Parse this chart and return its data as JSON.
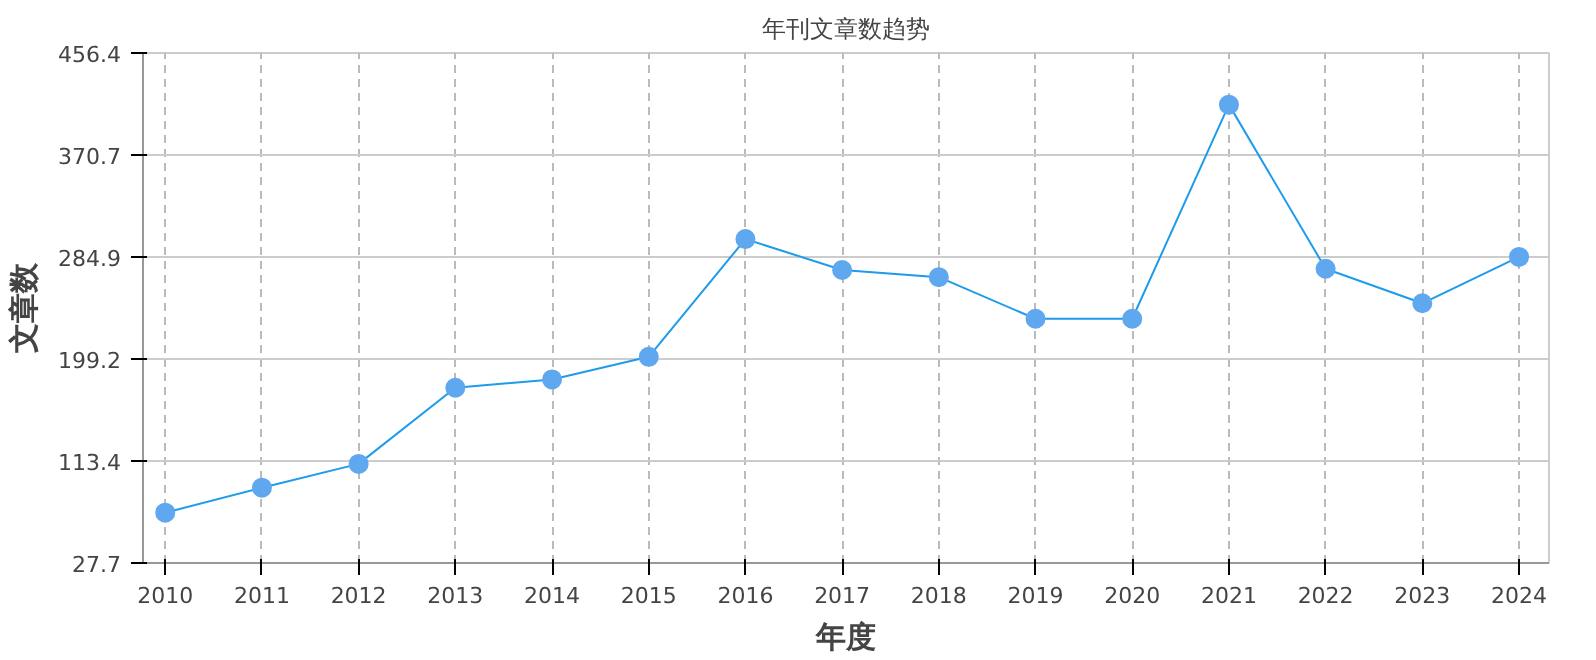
{
  "chart_data": {
    "type": "line",
    "title": "年刊文章数趋势",
    "xlabel": "年度",
    "ylabel": "文章数",
    "categories": [
      "2010",
      "2011",
      "2012",
      "2013",
      "2014",
      "2015",
      "2016",
      "2017",
      "2018",
      "2019",
      "2020",
      "2021",
      "2022",
      "2023",
      "2024"
    ],
    "series": [
      {
        "color": "#1e9bea",
        "values": [
          70,
          91,
          111,
          175,
          182,
          201,
          300,
          274,
          268,
          233,
          233,
          413,
          275,
          246,
          285
        ]
      }
    ],
    "ylim": [
      27.7,
      456.4
    ],
    "yticks": [
      27.7,
      113.4,
      199.2,
      284.9,
      370.7,
      456.4
    ],
    "grid": true,
    "marker": "circle",
    "line_style": "solid"
  }
}
